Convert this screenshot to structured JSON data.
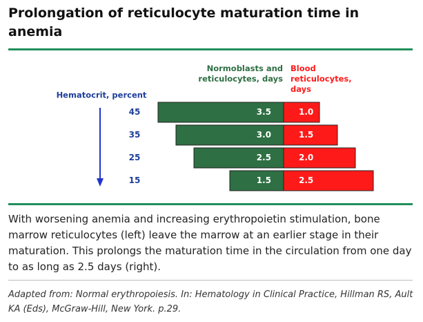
{
  "title": "Prolongation of reticulocyte maturation time in anemia",
  "chart_data": {
    "type": "diverging-bar",
    "axis_label": "Hematocrit, percent",
    "categories": [
      "45",
      "35",
      "25",
      "15"
    ],
    "series": [
      {
        "name": "Normoblasts and reticulocytes, days",
        "color": "#2e6f43",
        "side": "left",
        "values": [
          3.5,
          3.0,
          2.5,
          1.5
        ],
        "value_labels": [
          "3.5",
          "3.0",
          "2.5",
          "1.5"
        ]
      },
      {
        "name": "Blood reticulocytes, days",
        "color": "#ff1a1a",
        "side": "right",
        "values": [
          1.0,
          1.5,
          2.0,
          2.5
        ],
        "value_labels": [
          "1.0",
          "1.5",
          "2.0",
          "2.5"
        ]
      }
    ]
  },
  "caption": "With worsening anemia and increasing erythropoietin stimulation, bone marrow reticulocytes (left) leave the marrow at an earlier stage in their maturation. This prolongs the maturation time in the circulation from one day to as long as 2.5 days (right).",
  "source": "Adapted from: Normal erythropoiesis. In: Hematology in Clinical Practice, Hillman RS, Ault KA (Eds), McGraw-Hill, New York. p.29."
}
